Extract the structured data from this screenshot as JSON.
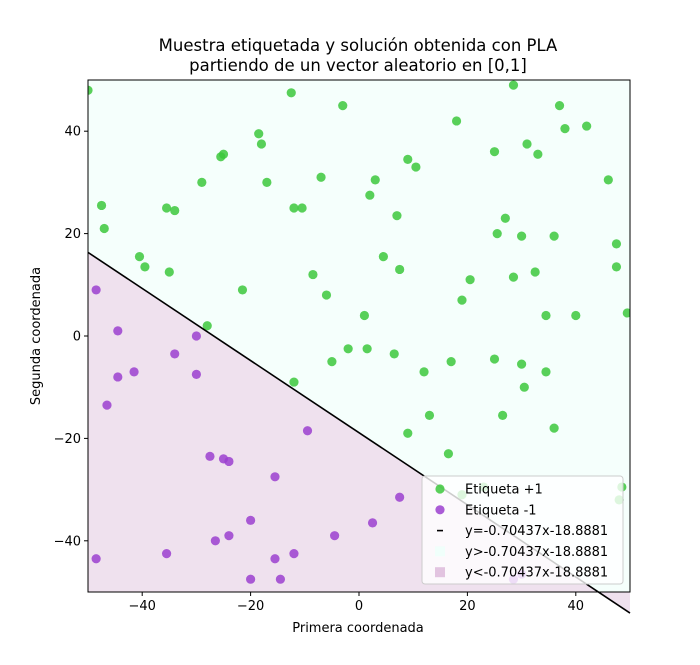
{
  "chart_data": {
    "type": "scatter",
    "title": [
      "Muestra etiquetada y solución obtenida con PLA",
      "partiendo de un vector aleatorio en [0,1]"
    ],
    "xlabel": "Primera coordenada",
    "ylabel": "Segunda coordenada",
    "xlim": [
      -50,
      50
    ],
    "ylim": [
      -50,
      50
    ],
    "xticks": [
      -40,
      -20,
      0,
      20,
      40
    ],
    "yticks": [
      -40,
      -20,
      0,
      20,
      40
    ],
    "xtick_labels": [
      "−40",
      "−20",
      "0",
      "20",
      "40"
    ],
    "ytick_labels": [
      "−40",
      "−20",
      "0",
      "20",
      "40"
    ],
    "grid": false,
    "legend_position": "lower-right",
    "colors": {
      "positive": "#3cc83c",
      "negative": "#9b3fcf",
      "line": "#000000",
      "region_above": "#f5fffc",
      "region_below": "#efe1ee",
      "legend_above_swatch": "#f0fffb",
      "legend_below_swatch": "#e2c4e0"
    },
    "line": {
      "slope": -0.70437,
      "intercept": -18.8881
    },
    "legend": [
      {
        "label": "Etiqueta +1",
        "kind": "marker",
        "series": "positive"
      },
      {
        "label": "Etiqueta -1",
        "kind": "marker",
        "series": "negative"
      },
      {
        "label": "y=-0.70437x-18.8881",
        "kind": "line"
      },
      {
        "label": "y>-0.70437x-18.8881",
        "kind": "patch-above"
      },
      {
        "label": "y<-0.70437x-18.8881",
        "kind": "patch-below"
      }
    ],
    "series": [
      {
        "name": "Etiqueta +1",
        "points": [
          [
            -50,
            48
          ],
          [
            -12.5,
            47.5
          ],
          [
            28.5,
            49
          ],
          [
            -3,
            45
          ],
          [
            37,
            45
          ],
          [
            18,
            42
          ],
          [
            42,
            41
          ],
          [
            38,
            40.5
          ],
          [
            -18.5,
            39.5
          ],
          [
            -18,
            37.5
          ],
          [
            31,
            37.5
          ],
          [
            -25,
            35.5
          ],
          [
            -25.5,
            35
          ],
          [
            25,
            36
          ],
          [
            33,
            35.5
          ],
          [
            9,
            34.5
          ],
          [
            10.5,
            33
          ],
          [
            -7,
            31
          ],
          [
            3,
            30.5
          ],
          [
            -29,
            30
          ],
          [
            -17,
            30
          ],
          [
            46,
            30.5
          ],
          [
            2,
            27.5
          ],
          [
            -47.5,
            25.5
          ],
          [
            -35.5,
            25
          ],
          [
            -34,
            24.5
          ],
          [
            -12,
            25
          ],
          [
            -10.5,
            25
          ],
          [
            7,
            23.5
          ],
          [
            27,
            23
          ],
          [
            -47,
            21
          ],
          [
            25.5,
            20
          ],
          [
            30,
            19.5
          ],
          [
            36,
            19.5
          ],
          [
            47.5,
            18
          ],
          [
            -40.5,
            15.5
          ],
          [
            4.5,
            15.5
          ],
          [
            -39.5,
            13.5
          ],
          [
            47.5,
            13.5
          ],
          [
            7.5,
            13
          ],
          [
            -35,
            12.5
          ],
          [
            32.5,
            12.5
          ],
          [
            -8.5,
            12
          ],
          [
            20.5,
            11
          ],
          [
            28.5,
            11.5
          ],
          [
            -21.5,
            9
          ],
          [
            -6,
            8
          ],
          [
            19,
            7
          ],
          [
            1,
            4
          ],
          [
            34.5,
            4
          ],
          [
            40,
            4
          ],
          [
            49.5,
            4.5
          ],
          [
            -28,
            2
          ],
          [
            -2,
            -2.5
          ],
          [
            1.5,
            -2.5
          ],
          [
            6.5,
            -3.5
          ],
          [
            -5,
            -5
          ],
          [
            17,
            -5
          ],
          [
            25,
            -4.5
          ],
          [
            30,
            -5.5
          ],
          [
            12,
            -7
          ],
          [
            34.5,
            -7
          ],
          [
            -12,
            -9
          ],
          [
            30.5,
            -10
          ],
          [
            13,
            -15.5
          ],
          [
            26.5,
            -15.5
          ],
          [
            36,
            -18
          ],
          [
            9,
            -19
          ],
          [
            16.5,
            -23
          ],
          [
            19,
            -31
          ],
          [
            23,
            -29.5
          ],
          [
            48.5,
            -29.5
          ],
          [
            48,
            -32
          ]
        ]
      },
      {
        "name": "Etiqueta -1",
        "points": [
          [
            -48.5,
            9
          ],
          [
            -44.5,
            1
          ],
          [
            -30,
            0
          ],
          [
            -34,
            -3.5
          ],
          [
            -44.5,
            -8
          ],
          [
            -41.5,
            -7
          ],
          [
            -30,
            -7.5
          ],
          [
            -46.5,
            -13.5
          ],
          [
            -9.5,
            -18.5
          ],
          [
            -27.5,
            -23.5
          ],
          [
            -25,
            -24
          ],
          [
            -24,
            -24.5
          ],
          [
            -15.5,
            -27.5
          ],
          [
            7.5,
            -31.5
          ],
          [
            -20,
            -36
          ],
          [
            2.5,
            -36.5
          ],
          [
            -24,
            -39
          ],
          [
            -4.5,
            -39
          ],
          [
            -26.5,
            -40
          ],
          [
            -12,
            -42.5
          ],
          [
            -35.5,
            -42.5
          ],
          [
            -15.5,
            -43.5
          ],
          [
            -48.5,
            -43.5
          ],
          [
            -20,
            -47.5
          ],
          [
            -14.5,
            -47.5
          ],
          [
            28.5,
            -47.5
          ],
          [
            30,
            -46.5
          ]
        ]
      }
    ]
  }
}
